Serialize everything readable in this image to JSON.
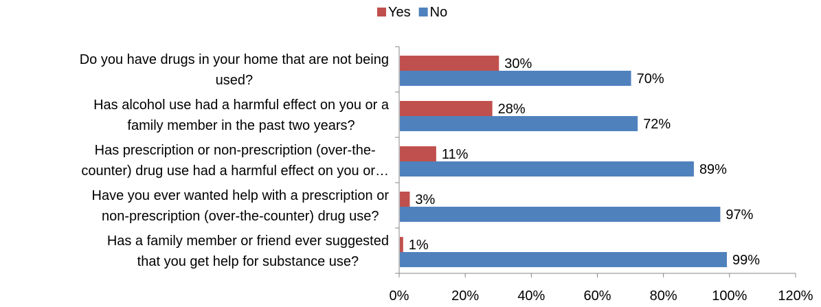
{
  "chart_data": {
    "type": "bar",
    "orientation": "horizontal",
    "categories": [
      "Do you have drugs in your home that are not being used?",
      "Has alcohol use had a harmful effect on you or a family member in the past two years?",
      "Has prescription or non-prescription (over-the-counter) drug use had a harmful effect on you or…",
      "Have you ever wanted help with a prescription or non-prescription (over-the-counter) drug use?",
      "Has a family member or friend ever suggested that you get help for substance use?"
    ],
    "category_lines": [
      [
        "Do you have drugs in your home that are not being",
        "used?"
      ],
      [
        "Has alcohol use had a harmful effect on you or a",
        "family member in the past two years?"
      ],
      [
        "Has prescription or non-prescription (over-the-",
        "counter) drug use had a harmful effect on you or…"
      ],
      [
        "Have you ever wanted help with a prescription or",
        "non-prescription (over-the-counter) drug use?"
      ],
      [
        "Has a family member or friend ever suggested",
        "that you get help for substance use?"
      ]
    ],
    "series": [
      {
        "name": "Yes",
        "color": "#C0504D",
        "values": [
          30,
          28,
          11,
          3,
          1
        ],
        "labels": [
          "30%",
          "28%",
          "11%",
          "3%",
          "1%"
        ]
      },
      {
        "name": "No",
        "color": "#4F81BD",
        "values": [
          70,
          72,
          89,
          97,
          99
        ],
        "labels": [
          "70%",
          "72%",
          "89%",
          "97%",
          "99%"
        ]
      }
    ],
    "xlim": [
      0,
      120
    ],
    "xticks": [
      0,
      20,
      40,
      60,
      80,
      100,
      120
    ],
    "xtick_labels": [
      "0%",
      "20%",
      "40%",
      "60%",
      "80%",
      "100%",
      "120%"
    ],
    "grid": false,
    "legend_position": "top-center"
  }
}
